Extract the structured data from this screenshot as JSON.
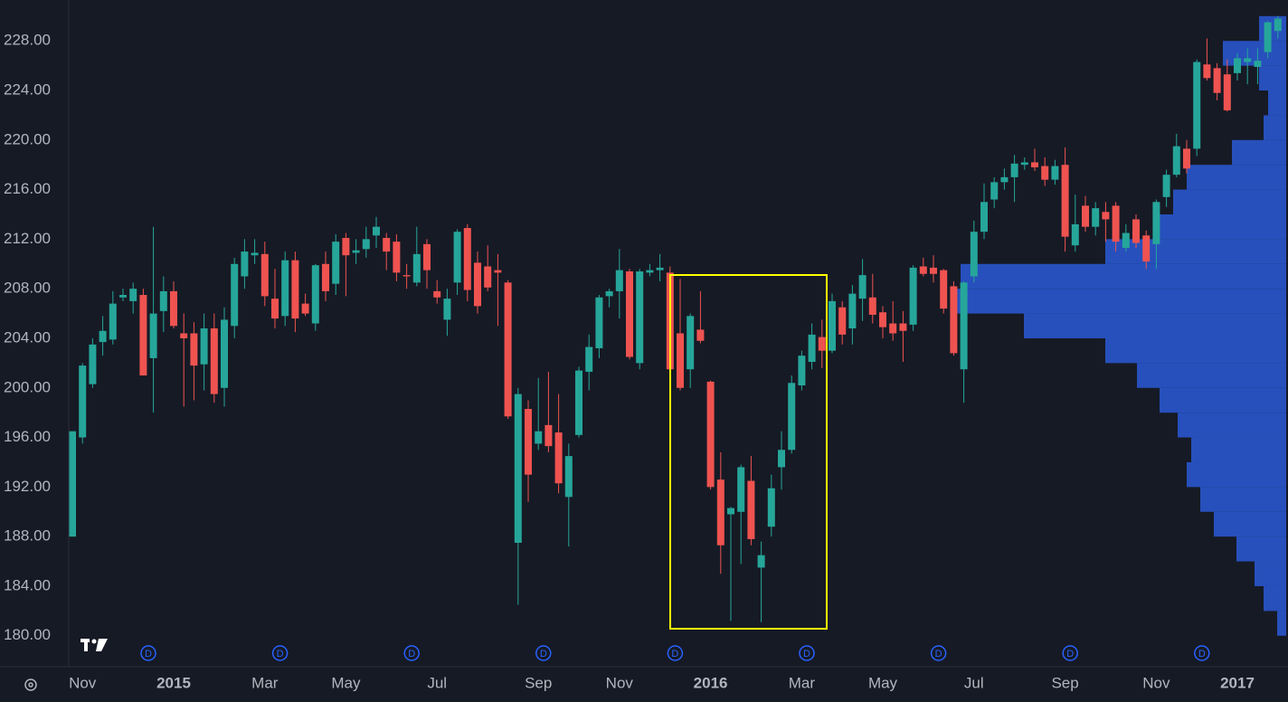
{
  "chart_data": {
    "type": "candlestick",
    "up_color": "#26a69a",
    "down_color": "#ef5350",
    "categories": [
      null,
      "Nov",
      null,
      null,
      null,
      null,
      null,
      null,
      null,
      null,
      "2015",
      null,
      null,
      null,
      null,
      null,
      null,
      null,
      null,
      "Mar",
      null,
      null,
      null,
      null,
      null,
      null,
      null,
      "May",
      null,
      null,
      null,
      null,
      null,
      null,
      null,
      null,
      "Jul",
      null,
      null,
      null,
      null,
      null,
      null,
      null,
      null,
      null,
      "Sep",
      null,
      null,
      null,
      null,
      null,
      null,
      null,
      "Nov",
      null,
      null,
      null,
      null,
      null,
      null,
      null,
      null,
      "2016",
      null,
      null,
      null,
      null,
      null,
      null,
      null,
      null,
      "Mar",
      null,
      null,
      null,
      null,
      null,
      null,
      null,
      "May",
      null,
      null,
      null,
      null,
      null,
      null,
      null,
      null,
      "Jul",
      null,
      null,
      null,
      null,
      null,
      null,
      null,
      null,
      "Sep",
      null,
      null,
      null,
      null,
      null,
      null,
      null,
      null,
      "Nov",
      null,
      null,
      null,
      null,
      null,
      null,
      null,
      "2017",
      null,
      null,
      null,
      null
    ],
    "open": [
      188,
      196,
      200.3,
      203.7,
      203.9,
      207.3,
      207,
      207.5,
      202.4,
      206.2,
      207.8,
      204.4,
      204.4,
      201.9,
      204.8,
      200,
      205,
      209,
      210.7,
      210.8,
      207.2,
      205.8,
      210.3,
      206.8,
      205.2,
      210,
      208.4,
      212.1,
      210.9,
      211.2,
      212.3,
      212.1,
      211.8,
      209.1,
      208.5,
      211.6,
      207.8,
      205.5,
      208.5,
      212.9,
      210.1,
      209.8,
      209.5,
      208.5,
      187.5,
      198.3,
      195.5,
      197,
      196.4,
      191.2,
      196.2,
      201.3,
      203.2,
      207.4,
      207.8,
      209.4,
      202,
      209.3,
      209.5,
      209.3,
      204.4,
      201.5,
      204.7,
      200.5,
      192.6,
      189.8,
      190,
      192.5,
      185.5,
      188.8,
      193.6,
      195,
      200.2,
      202.1,
      204.1,
      203,
      206.5,
      204.8,
      207.2,
      207.3,
      206.1,
      205.2,
      205.2,
      205.1,
      209.8,
      209.7,
      209.5,
      208.2,
      201.5,
      209,
      212.6,
      215.2,
      216.6,
      217,
      218,
      218.2,
      217.9,
      216.8,
      218,
      211.5,
      214.7,
      213,
      214.2,
      214.7,
      211.3,
      213.6,
      212.3,
      211.6,
      215.4,
      217.2,
      219.3,
      219.3,
      226.1,
      225.8,
      225.3,
      225.4,
      226.3,
      225.9,
      227.1,
      228.8
    ],
    "high": [
      196.5,
      202,
      204,
      205.8,
      207.8,
      208,
      208.5,
      208,
      213,
      209,
      208.6,
      206,
      205.3,
      206,
      206,
      206.5,
      210.5,
      212,
      212,
      211.8,
      209.6,
      211,
      211,
      207.6,
      210,
      211,
      212.4,
      212.5,
      212,
      213,
      213.8,
      212.5,
      212.4,
      210,
      213,
      212,
      208.7,
      208,
      212.8,
      213.2,
      211,
      211.5,
      210.8,
      208.7,
      200,
      199,
      200.8,
      201.3,
      199.5,
      195.5,
      201.7,
      204.3,
      207.5,
      208,
      211.2,
      209.6,
      209.6,
      210,
      210.8,
      209.8,
      208.8,
      206,
      207.8,
      200.6,
      194.8,
      190.4,
      193.8,
      194.5,
      187.6,
      193,
      196.5,
      201,
      203,
      205.2,
      205.5,
      207.6,
      207,
      208.3,
      210.4,
      209.2,
      206.6,
      207,
      206.2,
      209.9,
      210.5,
      210.7,
      209.6,
      208.6,
      208.6,
      213.5,
      216.5,
      217,
      217.7,
      218.8,
      218.6,
      219.3,
      218.6,
      218.4,
      219.4,
      215.6,
      215.5,
      215,
      215,
      215,
      213.2,
      214,
      212.7,
      215.2,
      217.6,
      220.5,
      220,
      226.5,
      228.2,
      226.2,
      226.5,
      227,
      227.4,
      227.4,
      229.6,
      230
    ],
    "low": [
      188,
      195.5,
      200,
      202.6,
      203.5,
      207,
      206,
      201,
      198,
      204.5,
      204.8,
      198.5,
      199,
      199.8,
      198.8,
      198.5,
      204,
      208,
      210,
      206.6,
      204.8,
      205,
      204.5,
      205.8,
      204.6,
      207,
      207.5,
      207.4,
      210,
      210.5,
      211.3,
      209.5,
      208.6,
      208,
      208.2,
      208,
      206.8,
      204.2,
      207.5,
      207,
      206,
      207.8,
      205,
      197.5,
      182.5,
      190.8,
      195,
      194.8,
      191.5,
      187.2,
      196,
      199.8,
      202.4,
      206.5,
      205.6,
      202.3,
      201.5,
      209,
      208.6,
      200.5,
      199.8,
      200,
      203.6,
      191.8,
      185,
      181.2,
      185.8,
      187.3,
      181.1,
      188,
      191.8,
      194.7,
      199.8,
      201.5,
      201.6,
      202.8,
      203.5,
      203.5,
      205.4,
      205.2,
      204,
      203.8,
      202.1,
      204.6,
      209,
      208.5,
      206,
      202.6,
      198.8,
      208.5,
      212,
      214.5,
      216,
      215,
      217.6,
      217.5,
      216.3,
      216.4,
      211,
      211,
      212.6,
      212.3,
      211.8,
      211,
      211,
      211.3,
      209.6,
      209.6,
      214.6,
      217,
      217.3,
      218.7,
      224.8,
      223.2,
      222.3,
      224.8,
      224.5,
      224.5,
      226.6,
      228.2
    ],
    "close": [
      196.5,
      201.8,
      203.5,
      204.6,
      206.8,
      207.5,
      208,
      201,
      206,
      207.8,
      205,
      204,
      201.8,
      204.8,
      199.5,
      205.5,
      210,
      211,
      210.9,
      207.4,
      205.6,
      210.3,
      205.6,
      206,
      209.9,
      207.8,
      211.8,
      210.7,
      211.1,
      212,
      213,
      211,
      209.3,
      209,
      210.8,
      209.5,
      207.3,
      207.2,
      212.6,
      207.9,
      206.6,
      208.1,
      209.3,
      197.7,
      199.5,
      193,
      196.5,
      195.3,
      192.3,
      194.5,
      201.4,
      203.3,
      207.3,
      207.8,
      209.5,
      202.5,
      209.4,
      209.5,
      209.7,
      201.5,
      200,
      205.8,
      203.8,
      192,
      187.3,
      190.3,
      193.6,
      187.8,
      186.5,
      191.9,
      195,
      200.4,
      202.6,
      204.3,
      203,
      207,
      204.3,
      207.6,
      209.1,
      205.9,
      204.9,
      204.4,
      204.6,
      209.7,
      209.2,
      209.2,
      206.4,
      202.8,
      208.5,
      212.6,
      215,
      216.6,
      217,
      218.1,
      218.2,
      217.8,
      216.8,
      217.9,
      212.2,
      213.2,
      213,
      214.5,
      213.6,
      211.8,
      212.5,
      211.7,
      210.2,
      215,
      217.2,
      219.5,
      217.7,
      226.3,
      225,
      223.8,
      222.4,
      226.6,
      226.6,
      226.4,
      229.5,
      229.8
    ],
    "ylim": [
      177.5,
      231.3
    ],
    "yticks": [
      {
        "value": 180,
        "label": "180.00"
      },
      {
        "value": 184,
        "label": "184.00"
      },
      {
        "value": 188,
        "label": "188.00"
      },
      {
        "value": 192,
        "label": "192.00"
      },
      {
        "value": 196,
        "label": "196.00"
      },
      {
        "value": 200,
        "label": "200.00"
      },
      {
        "value": 204,
        "label": "204.00"
      },
      {
        "value": 208,
        "label": "208.00"
      },
      {
        "value": 212,
        "label": "212.00"
      },
      {
        "value": 216,
        "label": "216.00"
      },
      {
        "value": 220,
        "label": "220.00"
      },
      {
        "value": 224,
        "label": "224.00"
      },
      {
        "value": 228,
        "label": "228.00"
      }
    ],
    "dividend_marker": "D",
    "volume_profile": {
      "color": "#2a5bd7",
      "levels": [
        181,
        183,
        185,
        187,
        189,
        191,
        193,
        195,
        197,
        199,
        201,
        203,
        205,
        207,
        209,
        211,
        213,
        215,
        217,
        219,
        221,
        223,
        225,
        227,
        229
      ],
      "values": [
        10,
        25,
        35,
        55,
        80,
        95,
        110,
        105,
        120,
        140,
        165,
        200,
        290,
        370,
        360,
        200,
        140,
        125,
        110,
        60,
        25,
        20,
        30,
        70,
        30
      ]
    }
  }
}
